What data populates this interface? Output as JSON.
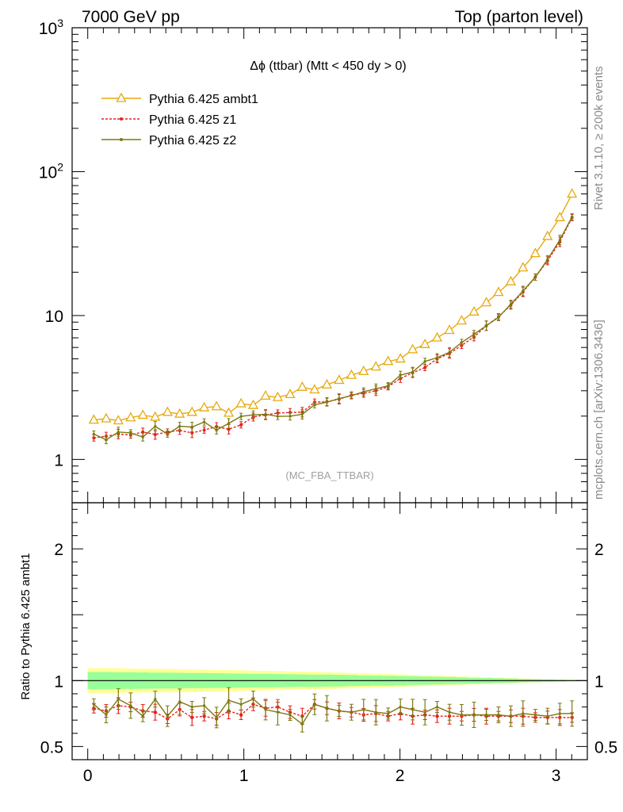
{
  "header": {
    "left": "7000 GeV pp",
    "right": "Top (parton level)"
  },
  "side_labels": {
    "rivet": "Rivet 3.1.10, ≥ 200k events",
    "mcplots": "mcplots.cern.ch [arXiv:1306.3436]"
  },
  "analysis_tag": "(MC_FBA_TTBAR)",
  "chart_data": [
    {
      "type": "line",
      "panel": "main",
      "title": "Δϕ (ttbar) (Mtt < 450 dy > 0)",
      "yscale": "log",
      "xlim": [
        -0.1,
        3.2
      ],
      "ylim": [
        0.5,
        1000
      ],
      "y_ticks": [
        {
          "value": 1,
          "label": "1"
        },
        {
          "value": 10,
          "label": "10"
        },
        {
          "value": 100,
          "label": "10²"
        },
        {
          "value": 1000,
          "label": "10³"
        }
      ],
      "x": [
        0.039,
        0.118,
        0.196,
        0.275,
        0.353,
        0.432,
        0.511,
        0.589,
        0.668,
        0.746,
        0.825,
        0.903,
        0.982,
        1.06,
        1.139,
        1.217,
        1.296,
        1.374,
        1.453,
        1.532,
        1.61,
        1.689,
        1.767,
        1.846,
        1.924,
        2.003,
        2.081,
        2.16,
        2.238,
        2.317,
        2.395,
        2.474,
        2.553,
        2.631,
        2.71,
        2.788,
        2.867,
        2.945,
        3.024,
        3.102
      ],
      "series": [
        {
          "name": "Pythia 6.425 ambt1",
          "color": "#e8a90f",
          "marker": "triangle-open",
          "values": [
            1.88,
            1.92,
            1.86,
            1.95,
            2.03,
            1.97,
            2.13,
            2.07,
            2.13,
            2.29,
            2.33,
            2.1,
            2.44,
            2.38,
            2.76,
            2.7,
            2.83,
            3.18,
            3.05,
            3.3,
            3.55,
            3.85,
            4.1,
            4.4,
            4.8,
            5.0,
            5.8,
            6.3,
            7.0,
            7.9,
            9.2,
            10.6,
            12.3,
            14.5,
            17.2,
            21.5,
            27.0,
            35.5,
            48.0,
            70.0
          ]
        },
        {
          "name": "Pythia 6.425 z1",
          "color": "#e8201c",
          "marker": "dot",
          "values": [
            1.41,
            1.45,
            1.5,
            1.48,
            1.55,
            1.49,
            1.55,
            1.59,
            1.53,
            1.6,
            1.69,
            1.62,
            1.74,
            1.97,
            2.04,
            2.1,
            2.12,
            2.13,
            2.5,
            2.52,
            2.62,
            2.8,
            2.88,
            3.0,
            3.2,
            3.65,
            4.0,
            4.35,
            5.0,
            5.45,
            6.2,
            7.1,
            8.5,
            9.8,
            11.8,
            14.6,
            18.5,
            24.0,
            32.5,
            48.0
          ]
        },
        {
          "name": "Pythia 6.425 z2",
          "color": "#7a7a10",
          "marker": "dot",
          "values": [
            1.5,
            1.37,
            1.55,
            1.53,
            1.43,
            1.7,
            1.5,
            1.7,
            1.68,
            1.82,
            1.6,
            1.78,
            1.99,
            2.04,
            2.06,
            1.99,
            2.0,
            2.06,
            2.4,
            2.5,
            2.65,
            2.77,
            2.95,
            3.1,
            3.25,
            3.85,
            4.05,
            4.8,
            5.1,
            5.55,
            6.5,
            7.4,
            8.5,
            9.7,
            12.0,
            14.8,
            18.5,
            24.5,
            33.5,
            48.5
          ]
        }
      ]
    },
    {
      "type": "line",
      "panel": "ratio",
      "ylabel": "Ratio to Pythia 6.425 ambt1",
      "xlim": [
        -0.1,
        3.2
      ],
      "ylim": [
        0.4,
        2.35
      ],
      "x_ticks": [
        {
          "value": 0,
          "label": "0"
        },
        {
          "value": 1,
          "label": "1"
        },
        {
          "value": 2,
          "label": "2"
        },
        {
          "value": 3,
          "label": "3"
        }
      ],
      "y_ticks": [
        {
          "value": 0.5,
          "label": "0.5"
        },
        {
          "value": 1,
          "label": "1"
        },
        {
          "value": 2,
          "label": "2"
        }
      ],
      "band_inner": [
        0.065,
        0.065,
        0.064,
        0.063,
        0.062,
        0.061,
        0.06,
        0.059,
        0.058,
        0.057,
        0.056,
        0.055,
        0.053,
        0.052,
        0.051,
        0.05,
        0.049,
        0.047,
        0.046,
        0.045,
        0.044,
        0.042,
        0.04,
        0.038,
        0.037,
        0.035,
        0.033,
        0.031,
        0.029,
        0.027,
        0.025,
        0.022,
        0.02,
        0.018,
        0.016,
        0.013,
        0.011,
        0.009,
        0.007,
        0.005
      ],
      "band_outer": [
        0.095,
        0.095,
        0.094,
        0.092,
        0.091,
        0.09,
        0.089,
        0.087,
        0.086,
        0.084,
        0.082,
        0.08,
        0.078,
        0.076,
        0.074,
        0.072,
        0.07,
        0.068,
        0.066,
        0.064,
        0.061,
        0.058,
        0.056,
        0.053,
        0.05,
        0.047,
        0.044,
        0.041,
        0.038,
        0.035,
        0.032,
        0.029,
        0.026,
        0.023,
        0.02,
        0.017,
        0.014,
        0.011,
        0.009,
        0.007
      ],
      "series": [
        {
          "name": "Pythia 6.425 z1",
          "color": "#e8201c",
          "values": [
            0.79,
            0.77,
            0.81,
            0.8,
            0.77,
            0.76,
            0.71,
            0.78,
            0.72,
            0.73,
            0.71,
            0.77,
            0.74,
            0.82,
            0.79,
            0.8,
            0.76,
            0.73,
            0.82,
            0.79,
            0.77,
            0.76,
            0.74,
            0.75,
            0.73,
            0.75,
            0.73,
            0.74,
            0.73,
            0.73,
            0.73,
            0.74,
            0.73,
            0.73,
            0.73,
            0.73,
            0.72,
            0.72,
            0.72,
            0.72
          ]
        },
        {
          "name": "Pythia 6.425 z2",
          "color": "#7a7a10",
          "values": [
            0.82,
            0.74,
            0.86,
            0.81,
            0.73,
            0.86,
            0.73,
            0.84,
            0.8,
            0.81,
            0.72,
            0.85,
            0.82,
            0.86,
            0.78,
            0.76,
            0.74,
            0.67,
            0.82,
            0.79,
            0.77,
            0.76,
            0.78,
            0.76,
            0.75,
            0.8,
            0.78,
            0.76,
            0.8,
            0.76,
            0.74,
            0.74,
            0.74,
            0.74,
            0.73,
            0.75,
            0.74,
            0.73,
            0.75,
            0.75
          ]
        }
      ]
    }
  ]
}
